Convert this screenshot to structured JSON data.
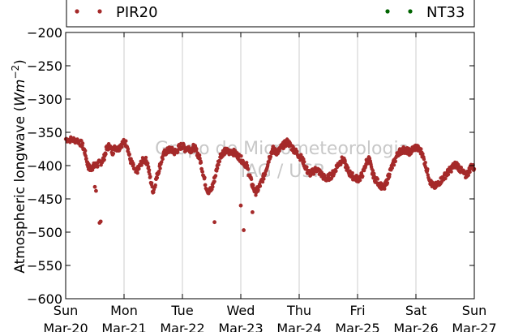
{
  "chart_data": {
    "type": "scatter",
    "ylabel": "Atmospheric longwave",
    "ylabel_unit_base": "Wm",
    "ylabel_unit_exp": "−2",
    "ylim": [
      -600,
      -200
    ],
    "yticks": [
      -200,
      -250,
      -300,
      -350,
      -400,
      -450,
      -500,
      -550,
      -600
    ],
    "ytick_labels": [
      "−200",
      "−250",
      "−300",
      "−350",
      "−400",
      "−450",
      "−500",
      "−550",
      "−600"
    ],
    "xlim": [
      0,
      7
    ],
    "xticks": [
      {
        "day": "Sun",
        "date": "Mar-20"
      },
      {
        "day": "Mon",
        "date": "Mar-21"
      },
      {
        "day": "Tue",
        "date": "Mar-22"
      },
      {
        "day": "Wed",
        "date": "Mar-23"
      },
      {
        "day": "Thu",
        "date": "Mar-24"
      },
      {
        "day": "Fri",
        "date": "Mar-25"
      },
      {
        "day": "Sat",
        "date": "Mar-26"
      },
      {
        "day": "Sun",
        "date": "Mar-27"
      }
    ],
    "grid": "vertical",
    "legend_position": "top",
    "watermark": [
      "Grupo de Micrometeorologia",
      "IAG / USP"
    ],
    "series": [
      {
        "name": "PIR20",
        "color": "#a52a2a",
        "x": [
          0.0,
          0.1,
          0.2,
          0.28,
          0.33,
          0.38,
          0.42,
          0.46,
          0.5,
          0.55,
          0.6,
          0.65,
          0.7,
          0.75,
          0.8,
          0.85,
          0.9,
          0.95,
          1.0,
          1.05,
          1.1,
          1.15,
          1.2,
          1.25,
          1.3,
          1.35,
          1.4,
          1.45,
          1.5,
          1.55,
          1.6,
          1.65,
          1.7,
          1.75,
          1.8,
          1.85,
          1.9,
          1.95,
          2.0,
          2.05,
          2.1,
          2.15,
          2.2,
          2.25,
          2.3,
          2.35,
          2.4,
          2.45,
          2.5,
          2.55,
          2.6,
          2.65,
          2.7,
          2.75,
          2.8,
          2.85,
          2.9,
          2.95,
          3.0,
          3.05,
          3.1,
          3.15,
          3.2,
          3.25,
          3.3,
          3.35,
          3.4,
          3.45,
          3.5,
          3.55,
          3.6,
          3.65,
          3.7,
          3.75,
          3.8,
          3.85,
          3.9,
          3.95,
          4.0,
          4.05,
          4.1,
          4.15,
          4.2,
          4.25,
          4.3,
          4.35,
          4.4,
          4.45,
          4.5,
          4.55,
          4.6,
          4.65,
          4.7,
          4.75,
          4.8,
          4.85,
          4.9,
          4.95,
          5.0,
          5.05,
          5.1,
          5.15,
          5.2,
          5.25,
          5.3,
          5.35,
          5.4,
          5.45,
          5.5,
          5.55,
          5.6,
          5.65,
          5.7,
          5.75,
          5.8,
          5.85,
          5.9,
          5.95,
          6.0,
          6.05,
          6.1,
          6.15,
          6.2,
          6.25,
          6.3,
          6.35,
          6.4,
          6.45,
          6.5,
          6.55,
          6.6,
          6.65,
          6.7,
          6.75,
          6.8,
          6.85,
          6.9,
          6.95,
          7.0
        ],
        "y": [
          -360,
          -361,
          -362,
          -368,
          -380,
          -400,
          -405,
          -402,
          -400,
          -398,
          -395,
          -390,
          -375,
          -370,
          -380,
          -372,
          -375,
          -368,
          -365,
          -368,
          -390,
          -400,
          -410,
          -405,
          -395,
          -390,
          -395,
          -420,
          -440,
          -420,
          -405,
          -390,
          -380,
          -378,
          -375,
          -380,
          -378,
          -372,
          -370,
          -375,
          -373,
          -376,
          -372,
          -380,
          -390,
          -410,
          -430,
          -440,
          -435,
          -420,
          -400,
          -385,
          -380,
          -378,
          -380,
          -378,
          -382,
          -385,
          -390,
          -395,
          -400,
          -415,
          -430,
          -440,
          -435,
          -425,
          -415,
          -400,
          -385,
          -375,
          -380,
          -378,
          -372,
          -368,
          -364,
          -370,
          -375,
          -380,
          -385,
          -390,
          -400,
          -410,
          -412,
          -408,
          -405,
          -410,
          -415,
          -420,
          -418,
          -415,
          -410,
          -400,
          -395,
          -390,
          -400,
          -410,
          -415,
          -418,
          -420,
          -418,
          -410,
          -395,
          -390,
          -410,
          -420,
          -425,
          -430,
          -435,
          -425,
          -410,
          -400,
          -390,
          -380,
          -378,
          -376,
          -378,
          -380,
          -375,
          -372,
          -376,
          -380,
          -395,
          -410,
          -425,
          -432,
          -430,
          -425,
          -420,
          -415,
          -410,
          -405,
          -400,
          -398,
          -405,
          -410,
          -415,
          -410,
          -400,
          -405
        ]
      },
      {
        "name": "NT33",
        "color": "#006400",
        "x": [],
        "y": []
      }
    ],
    "outliers_x": [
      0.5,
      0.52,
      0.58,
      0.6,
      3.0,
      3.05,
      2.55,
      3.2
    ],
    "outliers_y": [
      -432,
      -438,
      -486,
      -484,
      -460,
      -497,
      -485,
      -470
    ]
  }
}
